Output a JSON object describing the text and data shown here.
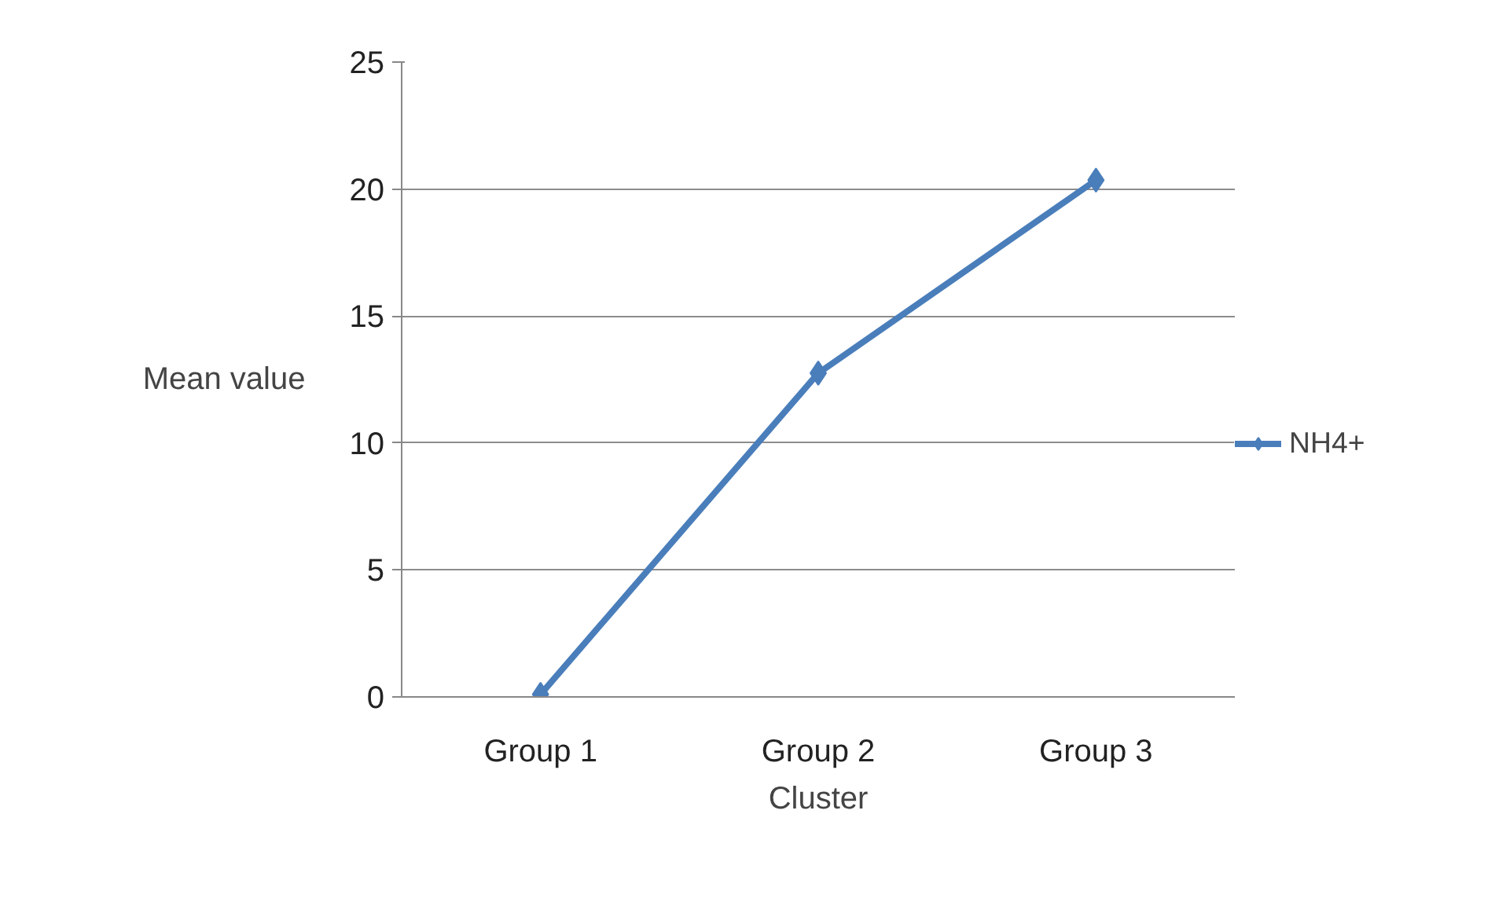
{
  "chart_data": {
    "type": "line",
    "xlabel": "Cluster",
    "ylabel": "Mean value",
    "categories": [
      "Group 1",
      "Group 2",
      "Group 3"
    ],
    "series": [
      {
        "name": "NH4+",
        "color": "#4a7ebb",
        "values": [
          0.1,
          12.75,
          20.35
        ]
      }
    ],
    "ylim": [
      0,
      25
    ],
    "yticks": [
      0,
      5,
      10,
      15,
      20,
      25
    ],
    "grid": "y",
    "legend": "right",
    "marker": "diamond",
    "line_style": "solid"
  }
}
